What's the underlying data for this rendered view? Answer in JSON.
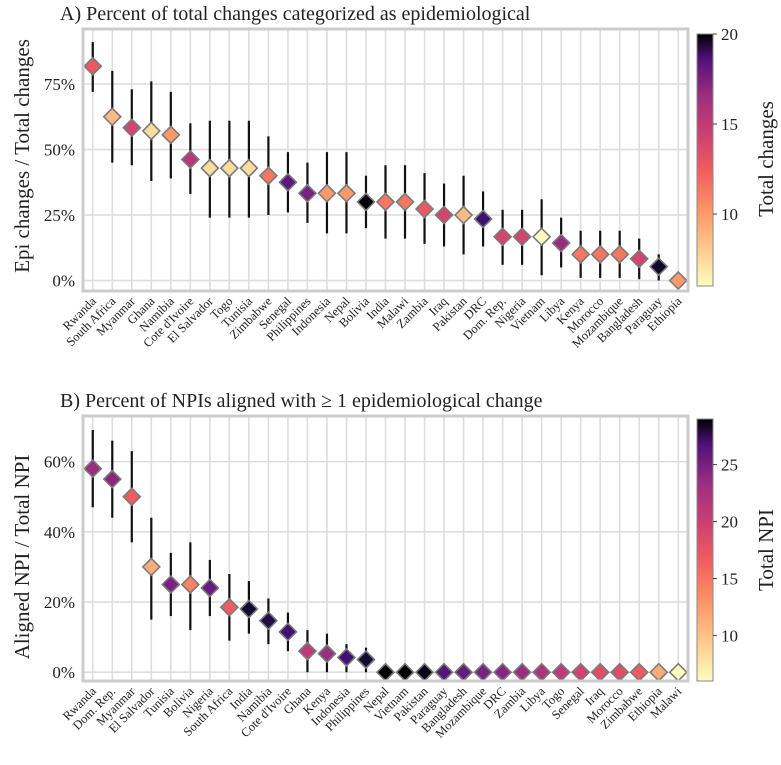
{
  "chart_data": [
    {
      "type": "scatter",
      "title": "A) Percent of total changes categorized as epidemiological",
      "ylabel": "Epi changes / Total changes",
      "ylim": [
        -0.04,
        0.96
      ],
      "yticks": [
        {
          "value": 0,
          "label": "0%"
        },
        {
          "value": 0.25,
          "label": "25%"
        },
        {
          "value": 0.5,
          "label": "50%"
        },
        {
          "value": 0.75,
          "label": "75%"
        }
      ],
      "grid": true,
      "colorbar": {
        "title": "Total changes",
        "range": [
          6,
          20
        ],
        "ticks": [
          {
            "value": 10,
            "label": "10"
          },
          {
            "value": 15,
            "label": "15"
          },
          {
            "value": 20,
            "label": "20"
          }
        ],
        "colormap": "magma"
      },
      "points": [
        {
          "name": "Rwanda",
          "y": 0.818,
          "lo": 0.72,
          "hi": 0.91,
          "c": 11
        },
        {
          "name": "South Africa",
          "y": 0.625,
          "lo": 0.45,
          "hi": 0.8,
          "c": 8
        },
        {
          "name": "Myanmar",
          "y": 0.583,
          "lo": 0.44,
          "hi": 0.73,
          "c": 12
        },
        {
          "name": "Ghana",
          "y": 0.571,
          "lo": 0.38,
          "hi": 0.76,
          "c": 7
        },
        {
          "name": "Namibia",
          "y": 0.556,
          "lo": 0.39,
          "hi": 0.72,
          "c": 9
        },
        {
          "name": "Cote d'Ivoire",
          "y": 0.462,
          "lo": 0.33,
          "hi": 0.6,
          "c": 13
        },
        {
          "name": "El Salvador",
          "y": 0.429,
          "lo": 0.24,
          "hi": 0.61,
          "c": 7
        },
        {
          "name": "Togo",
          "y": 0.429,
          "lo": 0.24,
          "hi": 0.61,
          "c": 7
        },
        {
          "name": "Tunisia",
          "y": 0.429,
          "lo": 0.24,
          "hi": 0.61,
          "c": 7
        },
        {
          "name": "Zimbabwe",
          "y": 0.4,
          "lo": 0.25,
          "hi": 0.55,
          "c": 10
        },
        {
          "name": "Senegal",
          "y": 0.375,
          "lo": 0.26,
          "hi": 0.49,
          "c": 16
        },
        {
          "name": "Philippines",
          "y": 0.333,
          "lo": 0.22,
          "hi": 0.45,
          "c": 15
        },
        {
          "name": "Indonesia",
          "y": 0.333,
          "lo": 0.18,
          "hi": 0.49,
          "c": 9
        },
        {
          "name": "Nepal",
          "y": 0.333,
          "lo": 0.18,
          "hi": 0.49,
          "c": 9
        },
        {
          "name": "Bolivia",
          "y": 0.3,
          "lo": 0.2,
          "hi": 0.4,
          "c": 20
        },
        {
          "name": "India",
          "y": 0.3,
          "lo": 0.16,
          "hi": 0.44,
          "c": 10
        },
        {
          "name": "Malawi",
          "y": 0.3,
          "lo": 0.16,
          "hi": 0.44,
          "c": 10
        },
        {
          "name": "Zambia",
          "y": 0.273,
          "lo": 0.14,
          "hi": 0.41,
          "c": 11
        },
        {
          "name": "Iraq",
          "y": 0.25,
          "lo": 0.13,
          "hi": 0.37,
          "c": 12
        },
        {
          "name": "Pakistan",
          "y": 0.25,
          "lo": 0.1,
          "hi": 0.4,
          "c": 8
        },
        {
          "name": "DRC",
          "y": 0.235,
          "lo": 0.13,
          "hi": 0.34,
          "c": 17
        },
        {
          "name": "Dom. Rep.",
          "y": 0.167,
          "lo": 0.06,
          "hi": 0.27,
          "c": 12
        },
        {
          "name": "Nigeria",
          "y": 0.167,
          "lo": 0.06,
          "hi": 0.27,
          "c": 12
        },
        {
          "name": "Vietnam",
          "y": 0.167,
          "lo": 0.02,
          "hi": 0.31,
          "c": 6
        },
        {
          "name": "Libya",
          "y": 0.143,
          "lo": 0.05,
          "hi": 0.24,
          "c": 14
        },
        {
          "name": "Kenya",
          "y": 0.1,
          "lo": 0.01,
          "hi": 0.19,
          "c": 10
        },
        {
          "name": "Morocco",
          "y": 0.1,
          "lo": 0.01,
          "hi": 0.19,
          "c": 10
        },
        {
          "name": "Mozambique",
          "y": 0.1,
          "lo": 0.01,
          "hi": 0.19,
          "c": 10
        },
        {
          "name": "Bangladesh",
          "y": 0.083,
          "lo": 0.005,
          "hi": 0.16,
          "c": 12
        },
        {
          "name": "Paraguay",
          "y": 0.053,
          "lo": 0.0,
          "hi": 0.1,
          "c": 19
        },
        {
          "name": "Ethiopia",
          "y": 0.0,
          "lo": 0.0,
          "hi": 0.0,
          "c": 9
        }
      ]
    },
    {
      "type": "scatter",
      "title": "B) Percent of NPIs aligned with ≥ 1 epidemiological change",
      "ylabel": "Aligned NPI / Total NPI",
      "ylim": [
        -0.025,
        0.73
      ],
      "yticks": [
        {
          "value": 0,
          "label": "0%"
        },
        {
          "value": 0.2,
          "label": "20%"
        },
        {
          "value": 0.4,
          "label": "40%"
        },
        {
          "value": 0.6,
          "label": "60%"
        }
      ],
      "grid": true,
      "colorbar": {
        "title": "Total NPI",
        "range": [
          6,
          29
        ],
        "ticks": [
          {
            "value": 10,
            "label": "10"
          },
          {
            "value": 15,
            "label": "15"
          },
          {
            "value": 20,
            "label": "20"
          },
          {
            "value": 25,
            "label": "25"
          }
        ],
        "colormap": "magma"
      },
      "points": [
        {
          "name": "Rwanda",
          "y": 0.58,
          "lo": 0.47,
          "hi": 0.69,
          "c": 19
        },
        {
          "name": "Dom. Rep.",
          "y": 0.55,
          "lo": 0.44,
          "hi": 0.66,
          "c": 20
        },
        {
          "name": "Myanmar",
          "y": 0.5,
          "lo": 0.37,
          "hi": 0.63,
          "c": 14
        },
        {
          "name": "El Salvador",
          "y": 0.3,
          "lo": 0.15,
          "hi": 0.44,
          "c": 10
        },
        {
          "name": "Tunisia",
          "y": 0.25,
          "lo": 0.16,
          "hi": 0.34,
          "c": 21
        },
        {
          "name": "Bolivia",
          "y": 0.25,
          "lo": 0.12,
          "hi": 0.37,
          "c": 12
        },
        {
          "name": "Nigeria",
          "y": 0.24,
          "lo": 0.16,
          "hi": 0.32,
          "c": 22
        },
        {
          "name": "South Africa",
          "y": 0.185,
          "lo": 0.09,
          "hi": 0.28,
          "c": 14
        },
        {
          "name": "India",
          "y": 0.18,
          "lo": 0.11,
          "hi": 0.26,
          "c": 27
        },
        {
          "name": "Namibia",
          "y": 0.147,
          "lo": 0.08,
          "hi": 0.21,
          "c": 26
        },
        {
          "name": "Cote d'Ivoire",
          "y": 0.115,
          "lo": 0.06,
          "hi": 0.17,
          "c": 24
        },
        {
          "name": "Ghana",
          "y": 0.06,
          "lo": 0.0,
          "hi": 0.12,
          "c": 17
        },
        {
          "name": "Kenya",
          "y": 0.053,
          "lo": 0.0,
          "hi": 0.11,
          "c": 19
        },
        {
          "name": "Indonesia",
          "y": 0.042,
          "lo": 0.0,
          "hi": 0.08,
          "c": 24
        },
        {
          "name": "Philippines",
          "y": 0.036,
          "lo": 0.0,
          "hi": 0.07,
          "c": 27
        },
        {
          "name": "Nepal",
          "y": 0.0,
          "lo": 0.0,
          "hi": 0.0,
          "c": 29
        },
        {
          "name": "Vietnam",
          "y": 0.0,
          "lo": 0.0,
          "hi": 0.0,
          "c": 29
        },
        {
          "name": "Pakistan",
          "y": 0.0,
          "lo": 0.0,
          "hi": 0.0,
          "c": 28
        },
        {
          "name": "Paraguay",
          "y": 0.0,
          "lo": 0.0,
          "hi": 0.0,
          "c": 23
        },
        {
          "name": "Bangladesh",
          "y": 0.0,
          "lo": 0.0,
          "hi": 0.0,
          "c": 22
        },
        {
          "name": "Mozambique",
          "y": 0.0,
          "lo": 0.0,
          "hi": 0.0,
          "c": 21
        },
        {
          "name": "DRC",
          "y": 0.0,
          "lo": 0.0,
          "hi": 0.0,
          "c": 20
        },
        {
          "name": "Zambia",
          "y": 0.0,
          "lo": 0.0,
          "hi": 0.0,
          "c": 19
        },
        {
          "name": "Libya",
          "y": 0.0,
          "lo": 0.0,
          "hi": 0.0,
          "c": 18
        },
        {
          "name": "Togo",
          "y": 0.0,
          "lo": 0.0,
          "hi": 0.0,
          "c": 17
        },
        {
          "name": "Senegal",
          "y": 0.0,
          "lo": 0.0,
          "hi": 0.0,
          "c": 16
        },
        {
          "name": "Iraq",
          "y": 0.0,
          "lo": 0.0,
          "hi": 0.0,
          "c": 15
        },
        {
          "name": "Morocco",
          "y": 0.0,
          "lo": 0.0,
          "hi": 0.0,
          "c": 15
        },
        {
          "name": "Zimbabwe",
          "y": 0.0,
          "lo": 0.0,
          "hi": 0.0,
          "c": 14
        },
        {
          "name": "Ethiopia",
          "y": 0.0,
          "lo": 0.0,
          "hi": 0.0,
          "c": 10
        },
        {
          "name": "Malawi",
          "y": 0.0,
          "lo": 0.0,
          "hi": 0.0,
          "c": 6
        }
      ]
    }
  ]
}
